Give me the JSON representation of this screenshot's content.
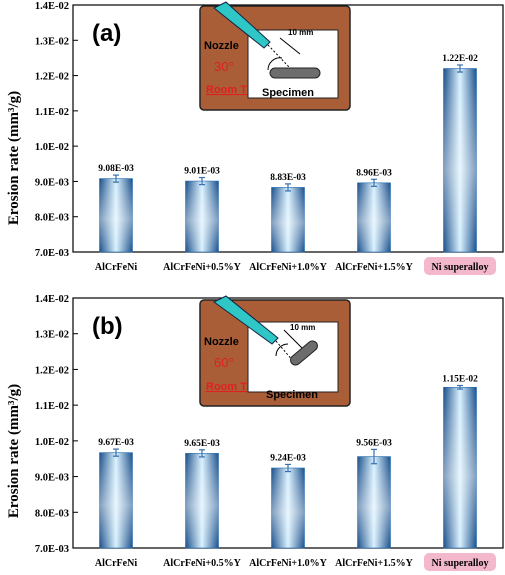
{
  "colors": {
    "bar_edge": "#1a4f8a",
    "bar_mid": "#d8f1ff",
    "bar_dark": "#1f6ab0",
    "inset_brown": "#a95e38",
    "nozzle_cyan": "#2fc6c6",
    "label_red": "#e0201f",
    "highlight_pink": "#f4b8cc",
    "error_bar": "#3a6fb0"
  },
  "chart_data": [
    {
      "type": "bar",
      "panel_label": "(a)",
      "ylabel": "Erosion rate (mm³/g)",
      "ylim": [
        0.007,
        0.014
      ],
      "ytick_labels": [
        "7.0E-03",
        "8.0E-03",
        "9.0E-03",
        "1.0E-02",
        "1.1E-02",
        "1.2E-02",
        "1.3E-02",
        "1.4E-02"
      ],
      "categories": [
        "AlCrFeNi",
        "AlCrFeNi+0.5%Y",
        "AlCrFeNi+1.0%Y",
        "AlCrFeNi+1.5%Y",
        "Ni superalloy"
      ],
      "highlighted_category": "Ni superalloy",
      "values": [
        0.00908,
        0.00901,
        0.00883,
        0.00896,
        0.0122
      ],
      "errors": [
        0.0001,
        0.0001,
        0.0001,
        0.0001,
        0.0001
      ],
      "data_labels": [
        "9.08E-03",
        "9.01E-03",
        "8.83E-03",
        "8.96E-03",
        "1.22E-02"
      ],
      "inset": {
        "nozzle_label": "Nozzle",
        "angle_label": "30°",
        "distance_label": "10 mm",
        "specimen_label": "Specimen",
        "condition_label": "Room T"
      }
    },
    {
      "type": "bar",
      "panel_label": "(b)",
      "ylabel": "Erosion rate (mm³/g)",
      "ylim": [
        0.007,
        0.014
      ],
      "ytick_labels": [
        "7.0E-03",
        "8.0E-03",
        "9.0E-03",
        "1.0E-02",
        "1.1E-02",
        "1.2E-02",
        "1.3E-02",
        "1.4E-02"
      ],
      "categories": [
        "AlCrFeNi",
        "AlCrFeNi+0.5%Y",
        "AlCrFeNi+1.0%Y",
        "AlCrFeNi+1.5%Y",
        "Ni superalloy"
      ],
      "highlighted_category": "Ni superalloy",
      "values": [
        0.00967,
        0.00965,
        0.00924,
        0.00956,
        0.0115
      ],
      "errors": [
        0.0001,
        0.0001,
        0.0001,
        0.0002,
        5e-05
      ],
      "data_labels": [
        "9.67E-03",
        "9.65E-03",
        "9.24E-03",
        "9.56E-03",
        "1.15E-02"
      ],
      "inset": {
        "nozzle_label": "Nozzle",
        "angle_label": "60°",
        "distance_label": "10 mm",
        "specimen_label": "Specimen",
        "condition_label": "Room T"
      }
    }
  ]
}
